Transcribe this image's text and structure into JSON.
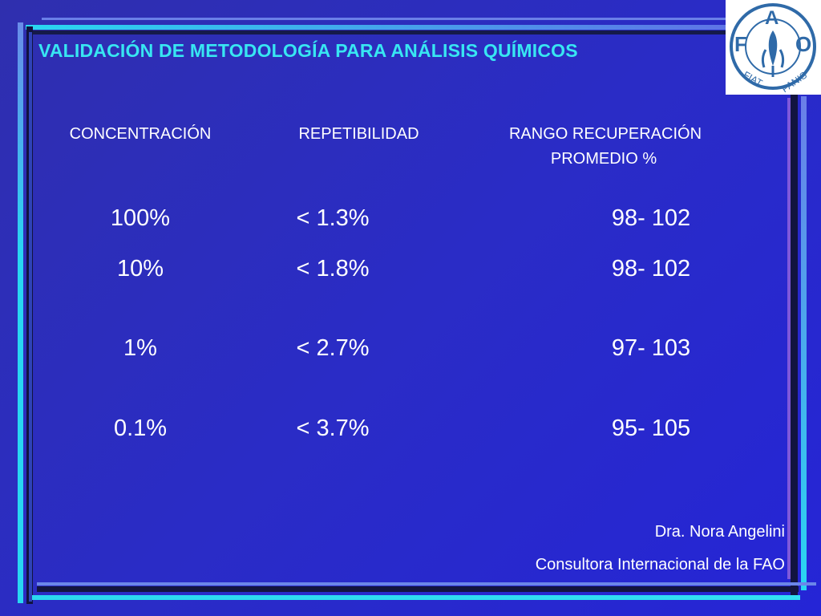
{
  "title": "VALIDACIÓN DE METODOLOGÍA PARA ANÁLISIS QUÍMICOS",
  "logo": {
    "icon": "fao-logo-icon",
    "letters": [
      "F",
      "A",
      "O"
    ],
    "motto_left": "FIAT",
    "motto_right": "PANIS",
    "color": "#2f6aa8"
  },
  "table": {
    "headers": {
      "concentration": "CONCENTRACIÓN",
      "repeatability": "REPETIBILIDAD",
      "recovery_line1": "RANGO RECUPERACIÓN",
      "recovery_line2": "PROMEDIO %"
    },
    "rows": [
      {
        "concentration": "100%",
        "repeatability": "< 1.3%",
        "recovery": "98- 102"
      },
      {
        "concentration": "10%",
        "repeatability": "< 1.8%",
        "recovery": "98- 102"
      },
      {
        "concentration": "1%",
        "repeatability": "< 2.7%",
        "recovery": "97- 103"
      },
      {
        "concentration": "0.1%",
        "repeatability": "< 3.7%",
        "recovery": "95- 105"
      }
    ]
  },
  "footer": {
    "author": "Dra. Nora Angelini",
    "role": "Consultora Internacional de la FAO"
  },
  "colors": {
    "title": "#38e6f2",
    "background": "#2a2cc6",
    "frame_cyan": "#28d8f0",
    "frame_dark": "#141640"
  }
}
